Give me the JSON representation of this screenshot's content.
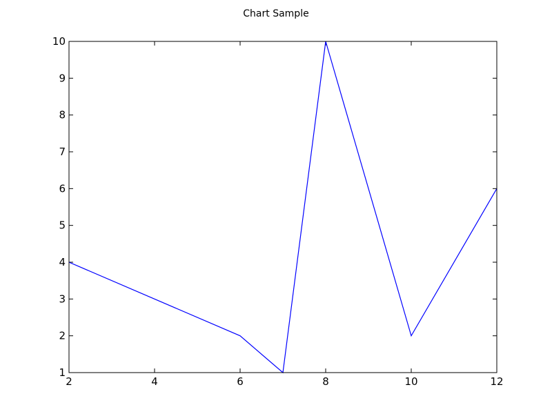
{
  "chart_data": {
    "type": "line",
    "title": "Chart Sample",
    "xlabel": "",
    "ylabel": "",
    "x": [
      2,
      6,
      7,
      8,
      10,
      12
    ],
    "series": [
      {
        "values": [
          4,
          2,
          1,
          10,
          2,
          6
        ]
      }
    ],
    "xlim": [
      2,
      12
    ],
    "ylim": [
      1,
      10
    ],
    "x_ticks": [
      2,
      4,
      6,
      8,
      10,
      12
    ],
    "y_ticks": [
      1,
      2,
      3,
      4,
      5,
      6,
      7,
      8,
      9,
      10
    ],
    "grid": false,
    "legend": "none",
    "colors": {
      "series": "#0000ff",
      "axes": "#000000",
      "background": "#ffffff"
    }
  }
}
